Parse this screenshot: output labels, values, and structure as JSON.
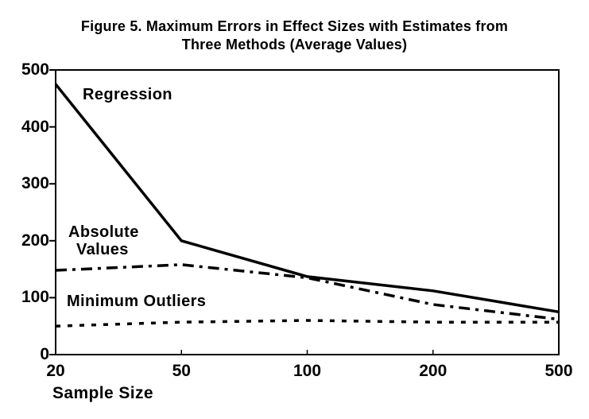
{
  "chart": {
    "title_line1": "Figure 5. Maximum Errors in Effect Sizes with Estimates from",
    "title_line2": "Three Methods (Average Values)",
    "xlabel": "Sample Size"
  },
  "annotations": {
    "regression_label": "Regression",
    "absolute_label_line1": "Absolute",
    "absolute_label_line2": "Values",
    "minimum_label": "Minimum Outliers"
  },
  "chart_data": {
    "type": "line",
    "title": "Figure 5. Maximum Errors in Effect Sizes with Estimates from Three Methods (Average Values)",
    "xlabel": "Sample Size",
    "ylabel": "",
    "categories": [
      20,
      50,
      100,
      200,
      500
    ],
    "x_axis_type": "categorical-equal-spacing",
    "yticks": [
      0,
      100,
      200,
      300,
      400,
      500
    ],
    "ylim": [
      0,
      500
    ],
    "grid": false,
    "legend_position": "inline-labels",
    "series": [
      {
        "name": "Regression",
        "style": "solid",
        "values": [
          475,
          200,
          137,
          112,
          75
        ]
      },
      {
        "name": "Absolute Values",
        "style": "dash-dot",
        "values": [
          148,
          158,
          135,
          88,
          62
        ]
      },
      {
        "name": "Minimum Outliers",
        "style": "dotted",
        "values": [
          50,
          57,
          60,
          57,
          57
        ]
      }
    ],
    "colors": {
      "line": "#000000",
      "background": "#ffffff"
    }
  }
}
